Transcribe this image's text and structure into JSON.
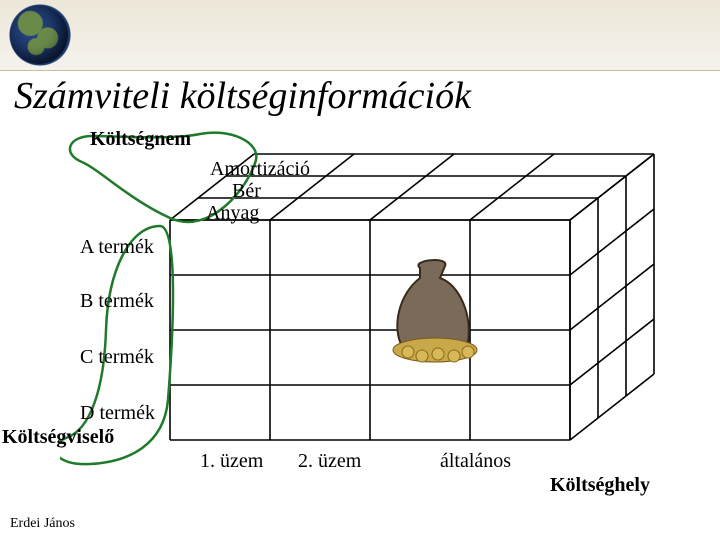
{
  "title": "Számviteli költséginformációk",
  "author": "Erdei János",
  "cube": {
    "grid_stroke": "#000000",
    "grid_width": 1.6,
    "highlight_stroke": "#1f7a2a",
    "highlight_width": 2.5,
    "bg": "#ffffff",
    "depth_labels": [
      "Amortizáció",
      "Bér",
      "Anyag"
    ],
    "row_labels": [
      "A termék",
      "B termék",
      "C termék",
      "D termék"
    ],
    "col_labels": [
      "1. üzem",
      "2. üzem",
      "általános"
    ]
  },
  "axis_labels": {
    "depth": "Költségnem",
    "rows": "Költségviselő",
    "cols": "Költséghely"
  },
  "colors": {
    "axis_label": "#000000",
    "axis_label_bold": "#000000"
  }
}
